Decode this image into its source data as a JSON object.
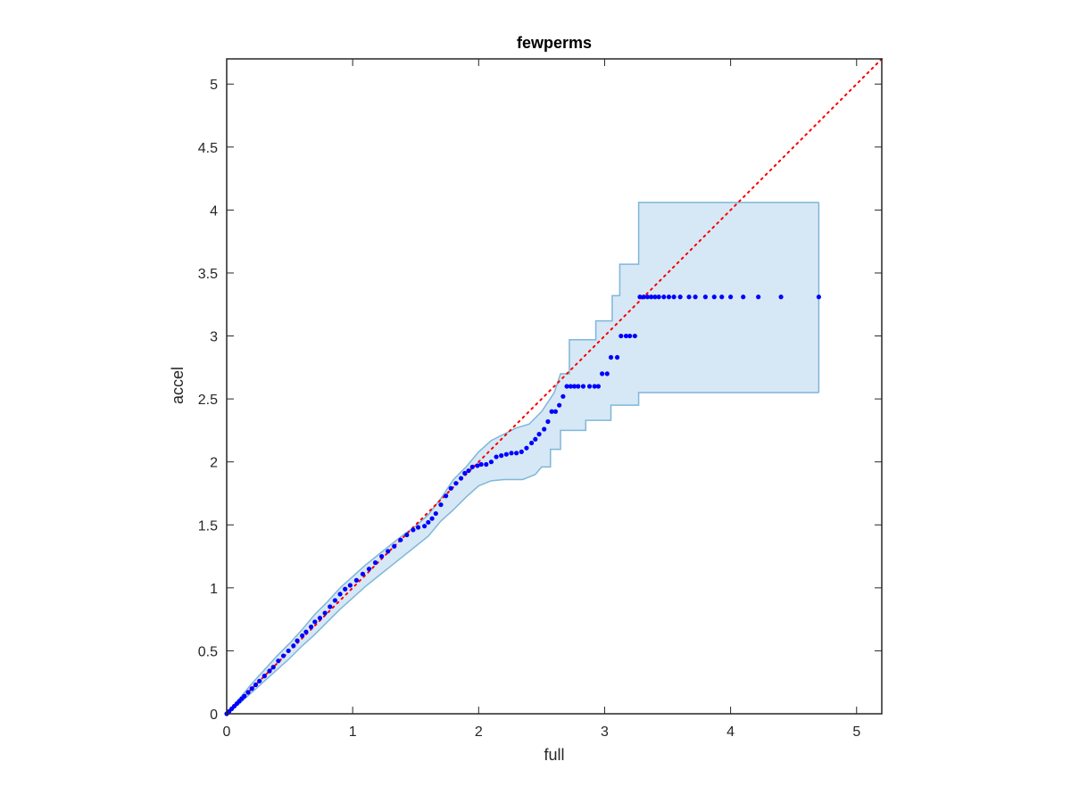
{
  "chart_data": {
    "type": "scatter",
    "title": "fewperms",
    "xlabel": "full",
    "ylabel": "accel",
    "xlim": [
      0,
      5.2
    ],
    "ylim": [
      0,
      5.2
    ],
    "xticks": [
      0,
      1,
      2,
      3,
      4,
      5
    ],
    "xtick_labels": [
      "0",
      "1",
      "2",
      "3",
      "4",
      "5"
    ],
    "yticks": [
      0,
      0.5,
      1,
      1.5,
      2,
      2.5,
      3,
      3.5,
      4,
      4.5,
      5
    ],
    "ytick_labels": [
      "0",
      "0.5",
      "1",
      "1.5",
      "2",
      "2.5",
      "3",
      "3.5",
      "4",
      "4.5",
      "5"
    ],
    "grid": false,
    "legend": "none",
    "colors": {
      "points": "#0000ff",
      "band_fill": "#d6e8f5",
      "band_edge": "#7fb6d9",
      "reference_line": "#ff0000",
      "axes": "#262626"
    },
    "reference_line": {
      "style": "dotted",
      "x": [
        0,
        5.2
      ],
      "y": [
        0,
        5.2
      ]
    },
    "confidence_band": {
      "upper": [
        [
          0,
          0
        ],
        [
          0.1,
          0.12
        ],
        [
          0.2,
          0.24
        ],
        [
          0.3,
          0.35
        ],
        [
          0.4,
          0.46
        ],
        [
          0.5,
          0.56
        ],
        [
          0.6,
          0.67
        ],
        [
          0.7,
          0.79
        ],
        [
          0.8,
          0.89
        ],
        [
          0.9,
          1.0
        ],
        [
          1.0,
          1.09
        ],
        [
          1.1,
          1.18
        ],
        [
          1.2,
          1.26
        ],
        [
          1.3,
          1.34
        ],
        [
          1.4,
          1.42
        ],
        [
          1.5,
          1.49
        ],
        [
          1.6,
          1.58
        ],
        [
          1.7,
          1.71
        ],
        [
          1.8,
          1.86
        ],
        [
          1.9,
          1.96
        ],
        [
          2.0,
          2.08
        ],
        [
          2.1,
          2.17
        ],
        [
          2.2,
          2.22
        ],
        [
          2.3,
          2.27
        ],
        [
          2.4,
          2.3
        ],
        [
          2.5,
          2.4
        ],
        [
          2.6,
          2.55
        ],
        [
          2.65,
          2.7
        ],
        [
          2.72,
          2.7
        ],
        [
          2.72,
          2.97
        ],
        [
          2.93,
          2.97
        ],
        [
          2.93,
          3.12
        ],
        [
          3.06,
          3.12
        ],
        [
          3.06,
          3.32
        ],
        [
          3.12,
          3.32
        ],
        [
          3.12,
          3.57
        ],
        [
          3.27,
          3.57
        ],
        [
          3.27,
          4.06
        ],
        [
          4.7,
          4.06
        ]
      ],
      "lower": [
        [
          0,
          0
        ],
        [
          0.1,
          0.08
        ],
        [
          0.2,
          0.17
        ],
        [
          0.3,
          0.26
        ],
        [
          0.4,
          0.35
        ],
        [
          0.5,
          0.44
        ],
        [
          0.6,
          0.54
        ],
        [
          0.7,
          0.63
        ],
        [
          0.8,
          0.73
        ],
        [
          0.9,
          0.83
        ],
        [
          1.0,
          0.92
        ],
        [
          1.1,
          1.01
        ],
        [
          1.2,
          1.09
        ],
        [
          1.3,
          1.17
        ],
        [
          1.4,
          1.25
        ],
        [
          1.5,
          1.33
        ],
        [
          1.6,
          1.41
        ],
        [
          1.7,
          1.53
        ],
        [
          1.8,
          1.62
        ],
        [
          1.9,
          1.72
        ],
        [
          2.0,
          1.81
        ],
        [
          2.1,
          1.85
        ],
        [
          2.2,
          1.86
        ],
        [
          2.35,
          1.86
        ],
        [
          2.45,
          1.9
        ],
        [
          2.5,
          1.96
        ],
        [
          2.57,
          1.96
        ],
        [
          2.57,
          2.1
        ],
        [
          2.65,
          2.1
        ],
        [
          2.65,
          2.25
        ],
        [
          2.85,
          2.25
        ],
        [
          2.85,
          2.33
        ],
        [
          3.05,
          2.33
        ],
        [
          3.05,
          2.45
        ],
        [
          3.27,
          2.45
        ],
        [
          3.27,
          2.55
        ],
        [
          4.7,
          2.55
        ]
      ]
    },
    "points": [
      [
        0.0,
        0.0
      ],
      [
        0.02,
        0.02
      ],
      [
        0.04,
        0.04
      ],
      [
        0.06,
        0.06
      ],
      [
        0.08,
        0.08
      ],
      [
        0.1,
        0.1
      ],
      [
        0.12,
        0.12
      ],
      [
        0.14,
        0.14
      ],
      [
        0.17,
        0.17
      ],
      [
        0.2,
        0.2
      ],
      [
        0.23,
        0.23
      ],
      [
        0.26,
        0.26
      ],
      [
        0.3,
        0.3
      ],
      [
        0.34,
        0.34
      ],
      [
        0.37,
        0.37
      ],
      [
        0.41,
        0.42
      ],
      [
        0.45,
        0.46
      ],
      [
        0.49,
        0.5
      ],
      [
        0.53,
        0.54
      ],
      [
        0.56,
        0.58
      ],
      [
        0.6,
        0.62
      ],
      [
        0.63,
        0.65
      ],
      [
        0.67,
        0.69
      ],
      [
        0.7,
        0.73
      ],
      [
        0.74,
        0.76
      ],
      [
        0.78,
        0.8
      ],
      [
        0.82,
        0.85
      ],
      [
        0.86,
        0.9
      ],
      [
        0.9,
        0.95
      ],
      [
        0.94,
        0.99
      ],
      [
        0.98,
        1.02
      ],
      [
        1.03,
        1.06
      ],
      [
        1.08,
        1.11
      ],
      [
        1.13,
        1.15
      ],
      [
        1.18,
        1.2
      ],
      [
        1.23,
        1.25
      ],
      [
        1.28,
        1.29
      ],
      [
        1.33,
        1.33
      ],
      [
        1.38,
        1.38
      ],
      [
        1.43,
        1.42
      ],
      [
        1.48,
        1.46
      ],
      [
        1.52,
        1.48
      ],
      [
        1.57,
        1.49
      ],
      [
        1.6,
        1.52
      ],
      [
        1.63,
        1.55
      ],
      [
        1.66,
        1.59
      ],
      [
        1.7,
        1.66
      ],
      [
        1.74,
        1.73
      ],
      [
        1.78,
        1.79
      ],
      [
        1.82,
        1.83
      ],
      [
        1.86,
        1.87
      ],
      [
        1.89,
        1.91
      ],
      [
        1.92,
        1.93
      ],
      [
        1.95,
        1.96
      ],
      [
        1.99,
        1.97
      ],
      [
        2.02,
        1.98
      ],
      [
        2.06,
        1.98
      ],
      [
        2.1,
        2.0
      ],
      [
        2.14,
        2.04
      ],
      [
        2.18,
        2.05
      ],
      [
        2.22,
        2.06
      ],
      [
        2.26,
        2.07
      ],
      [
        2.3,
        2.07
      ],
      [
        2.34,
        2.08
      ],
      [
        2.38,
        2.11
      ],
      [
        2.42,
        2.15
      ],
      [
        2.45,
        2.18
      ],
      [
        2.48,
        2.22
      ],
      [
        2.52,
        2.26
      ],
      [
        2.55,
        2.32
      ],
      [
        2.58,
        2.4
      ],
      [
        2.61,
        2.4
      ],
      [
        2.64,
        2.45
      ],
      [
        2.67,
        2.52
      ],
      [
        2.7,
        2.6
      ],
      [
        2.73,
        2.6
      ],
      [
        2.76,
        2.6
      ],
      [
        2.79,
        2.6
      ],
      [
        2.83,
        2.6
      ],
      [
        2.88,
        2.6
      ],
      [
        2.92,
        2.6
      ],
      [
        2.95,
        2.6
      ],
      [
        2.98,
        2.7
      ],
      [
        3.02,
        2.7
      ],
      [
        3.05,
        2.83
      ],
      [
        3.1,
        2.83
      ],
      [
        3.13,
        3.0
      ],
      [
        3.17,
        3.0
      ],
      [
        3.2,
        3.0
      ],
      [
        3.24,
        3.0
      ],
      [
        3.28,
        3.31
      ],
      [
        3.31,
        3.31
      ],
      [
        3.34,
        3.31
      ],
      [
        3.37,
        3.31
      ],
      [
        3.4,
        3.31
      ],
      [
        3.43,
        3.31
      ],
      [
        3.47,
        3.31
      ],
      [
        3.51,
        3.31
      ],
      [
        3.55,
        3.31
      ],
      [
        3.6,
        3.31
      ],
      [
        3.67,
        3.31
      ],
      [
        3.72,
        3.31
      ],
      [
        3.8,
        3.31
      ],
      [
        3.87,
        3.31
      ],
      [
        3.93,
        3.31
      ],
      [
        4.0,
        3.31
      ],
      [
        4.1,
        3.31
      ],
      [
        4.22,
        3.31
      ],
      [
        4.4,
        3.31
      ],
      [
        4.7,
        3.31
      ]
    ]
  }
}
